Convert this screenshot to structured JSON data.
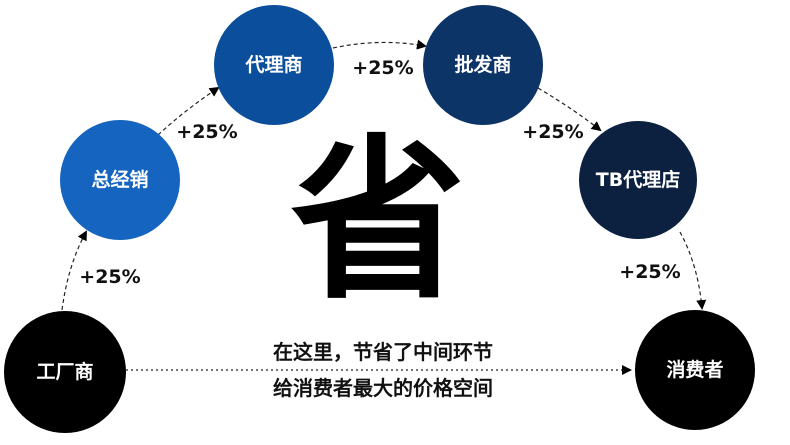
{
  "nodes": [
    {
      "label": "工厂商",
      "color": "#000000"
    },
    {
      "label": "总经销",
      "color": "#1565c0"
    },
    {
      "label": "代理商",
      "color": "#0b4f9c"
    },
    {
      "label": "批发商",
      "color": "#0d3466"
    },
    {
      "label": "TB代理店",
      "color": "#0c2040"
    },
    {
      "label": "消费者",
      "color": "#000000"
    }
  ],
  "markups": [
    "+25%",
    "+25%",
    "+25%",
    "+25%",
    "+25%"
  ],
  "center_char": "省",
  "caption": {
    "line1": "在这里，节省了中间环节",
    "line2": "给消费者最大的价格空间"
  }
}
